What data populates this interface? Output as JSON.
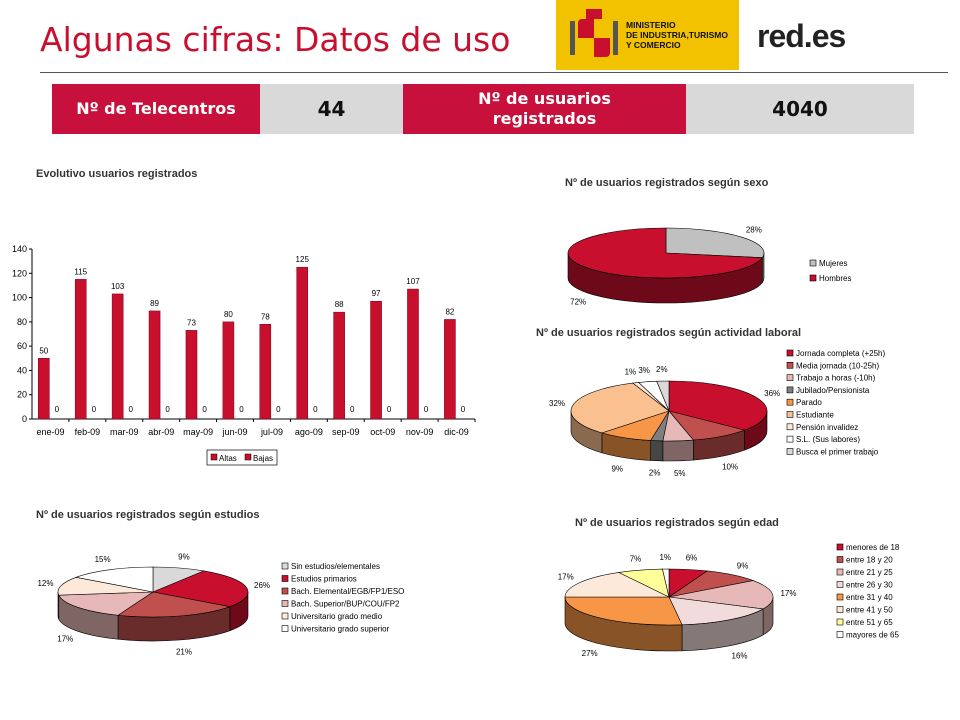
{
  "header": {
    "title": "Algunas cifras: Datos de uso",
    "ministry_logo_text": [
      "MINISTERIO",
      "DE INDUSTRIA,TURISMO",
      "Y COMERCIO"
    ],
    "brand_logo_text": "red.es"
  },
  "kpis": [
    {
      "label": "Nº de Telecentros",
      "value": "44"
    },
    {
      "label": "Nº de usuarios registrados",
      "value": "4040"
    }
  ],
  "colors": {
    "accent": "#c8102e",
    "kpi_red": "#c8103c",
    "kpi_gray": "#d9d9d9",
    "bar_red": "#c8102e"
  },
  "chart_data": [
    {
      "id": "evolutivo",
      "type": "bar",
      "title": "Evolutivo usuarios registrados",
      "categories": [
        "ene-09",
        "feb-09",
        "mar-09",
        "abr-09",
        "may-09",
        "jun-09",
        "jul-09",
        "ago-09",
        "sep-09",
        "oct-09",
        "nov-09",
        "dic-09"
      ],
      "series": [
        {
          "name": "Altas",
          "values": [
            50,
            115,
            103,
            89,
            73,
            80,
            78,
            125,
            88,
            97,
            107,
            82
          ],
          "color": "#c8102e"
        },
        {
          "name": "Bajas",
          "values": [
            0,
            0,
            0,
            0,
            0,
            0,
            0,
            0,
            0,
            0,
            0,
            0
          ],
          "color": "#c8102e"
        }
      ],
      "ylim": [
        0,
        140
      ],
      "yticks": [
        0,
        20,
        40,
        60,
        80,
        100,
        120,
        140
      ],
      "legend": "bottom"
    },
    {
      "id": "sexo",
      "type": "pie",
      "title": "Nº de usuarios registrados según sexo",
      "labels": [
        "Mujeres",
        "Hombres"
      ],
      "values": [
        28,
        72
      ],
      "value_labels": [
        "28%",
        "72%"
      ],
      "colors": [
        "#c0c0c0",
        "#c8102e"
      ],
      "legend": "right"
    },
    {
      "id": "actividad",
      "type": "pie",
      "title": "Nº de usuarios registrados según actividad laboral",
      "labels": [
        "Jornada completa (+25h)",
        "Media jornada (10-25h)",
        "Trabajo a horas (-10h)",
        "Jubilado/Pensionista",
        "Parado",
        "Estudiante",
        "Pensión invalidez",
        "S.L. (Sus labores)",
        "Busca el primer trabajo"
      ],
      "values": [
        36,
        10,
        5,
        2,
        9,
        32,
        1,
        3,
        2
      ],
      "value_labels": [
        "36%",
        "10%",
        "5%",
        "2%",
        "9%",
        "32%",
        "1%",
        "3%",
        "2%"
      ],
      "colors": [
        "#c8102e",
        "#c0504d",
        "#e6b9b8",
        "#7f7f7f",
        "#f79646",
        "#fac090",
        "#fde9d9",
        "#ffffff",
        "#d9d9d9"
      ],
      "legend": "right"
    },
    {
      "id": "estudios",
      "type": "pie",
      "title": "Nº de usuarios registrados según estudios",
      "labels": [
        "Sin estudios/elementales",
        "Estudios primarios",
        "Bach. Elemental/EGB/FP1/ESO",
        "Bach. Superior/BUP/COU/FP2",
        "Universitario grado medio",
        "Universitario grado superior"
      ],
      "values": [
        9,
        26,
        21,
        17,
        12,
        15
      ],
      "value_labels": [
        "9%",
        "26%",
        "21%",
        "17%",
        "12%",
        "15%"
      ],
      "colors": [
        "#d9d9d9",
        "#c8102e",
        "#c0504d",
        "#e6b9b8",
        "#fde9d9",
        "#ffffff"
      ],
      "legend": "right"
    },
    {
      "id": "edad",
      "type": "pie",
      "title": "Nº de usuarios registrados según edad",
      "labels": [
        "menores de 18",
        "entre 18 y 20",
        "entre 21 y 25",
        "entre 26 y 30",
        "entre 31 y 40",
        "entre 41 y 50",
        "entre 51 y 65",
        "mayores de 65"
      ],
      "values": [
        6,
        9,
        17,
        16,
        27,
        17,
        7,
        1
      ],
      "value_labels": [
        "6%",
        "9%",
        "17%",
        "16%",
        "27%",
        "17%",
        "7%",
        "1%"
      ],
      "colors": [
        "#c8102e",
        "#c0504d",
        "#e6b9b8",
        "#f2dcdb",
        "#f79646",
        "#fde9d9",
        "#ffff99",
        "#ffffff"
      ],
      "legend": "right"
    }
  ]
}
